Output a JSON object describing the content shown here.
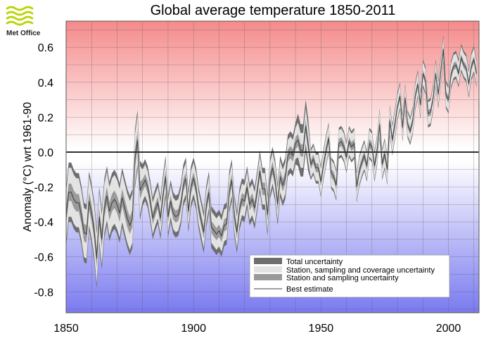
{
  "logo": {
    "text": "Met Office"
  },
  "colors": {
    "warm_band": "#f58a8a",
    "cool_band": "#7a7af0",
    "total_uncertainty": "#6e6e6e",
    "coverage_uncertainty": "#e3e3e3",
    "sampling_uncertainty": "#9a9a9a",
    "best_estimate": "#444444",
    "zero_line": "#000000"
  },
  "chart_data": {
    "type": "area",
    "title": "Global average temperature 1850-2011",
    "xlabel": "",
    "ylabel": "Anomaly (°C) wrt 1961-90",
    "xlim": [
      1850,
      2012
    ],
    "ylim": [
      -0.92,
      0.75
    ],
    "xticks": [
      1850,
      1900,
      1950,
      2000
    ],
    "yticks": [
      -0.8,
      -0.6,
      -0.4,
      -0.2,
      0.0,
      0.2,
      0.4,
      0.6
    ],
    "ytick_labels": [
      "-0.8",
      "-0.6",
      "-0.4",
      "-0.2",
      "0.0",
      "0.2",
      "0.4",
      "0.6"
    ],
    "grid": true,
    "legend_position": "lower-right",
    "legend": [
      {
        "key": "total",
        "label": "Total uncertainty"
      },
      {
        "key": "coverage",
        "label": "Station, sampling and coverage uncertainty"
      },
      {
        "key": "sampling",
        "label": "Station and sampling uncertainty"
      },
      {
        "key": "best",
        "label": "Best estimate"
      }
    ],
    "best_estimate": [
      [
        1850,
        -0.37
      ],
      [
        1851,
        -0.23
      ],
      [
        1852,
        -0.23
      ],
      [
        1853,
        -0.27
      ],
      [
        1854,
        -0.29
      ],
      [
        1855,
        -0.29
      ],
      [
        1856,
        -0.36
      ],
      [
        1857,
        -0.46
      ],
      [
        1858,
        -0.47
      ],
      [
        1859,
        -0.28
      ],
      [
        1860,
        -0.35
      ],
      [
        1861,
        -0.45
      ],
      [
        1862,
        -0.61
      ],
      [
        1863,
        -0.37
      ],
      [
        1864,
        -0.5
      ],
      [
        1865,
        -0.32
      ],
      [
        1866,
        -0.25
      ],
      [
        1867,
        -0.34
      ],
      [
        1868,
        -0.29
      ],
      [
        1869,
        -0.27
      ],
      [
        1870,
        -0.3
      ],
      [
        1871,
        -0.35
      ],
      [
        1872,
        -0.26
      ],
      [
        1873,
        -0.32
      ],
      [
        1874,
        -0.38
      ],
      [
        1875,
        -0.42
      ],
      [
        1876,
        -0.38
      ],
      [
        1877,
        -0.04
      ],
      [
        1878,
        0.07
      ],
      [
        1879,
        -0.22
      ],
      [
        1880,
        -0.19
      ],
      [
        1881,
        -0.16
      ],
      [
        1882,
        -0.2
      ],
      [
        1883,
        -0.28
      ],
      [
        1884,
        -0.38
      ],
      [
        1885,
        -0.33
      ],
      [
        1886,
        -0.29
      ],
      [
        1887,
        -0.38
      ],
      [
        1888,
        -0.25
      ],
      [
        1889,
        -0.14
      ],
      [
        1890,
        -0.37
      ],
      [
        1891,
        -0.28
      ],
      [
        1892,
        -0.35
      ],
      [
        1893,
        -0.37
      ],
      [
        1894,
        -0.36
      ],
      [
        1895,
        -0.3
      ],
      [
        1896,
        -0.19
      ],
      [
        1897,
        -0.15
      ],
      [
        1898,
        -0.34
      ],
      [
        1899,
        -0.2
      ],
      [
        1900,
        -0.15
      ],
      [
        1901,
        -0.21
      ],
      [
        1902,
        -0.32
      ],
      [
        1903,
        -0.39
      ],
      [
        1904,
        -0.46
      ],
      [
        1905,
        -0.31
      ],
      [
        1906,
        -0.23
      ],
      [
        1907,
        -0.43
      ],
      [
        1908,
        -0.45
      ],
      [
        1909,
        -0.47
      ],
      [
        1910,
        -0.45
      ],
      [
        1911,
        -0.48
      ],
      [
        1912,
        -0.42
      ],
      [
        1913,
        -0.41
      ],
      [
        1914,
        -0.23
      ],
      [
        1915,
        -0.16
      ],
      [
        1916,
        -0.36
      ],
      [
        1917,
        -0.46
      ],
      [
        1918,
        -0.33
      ],
      [
        1919,
        -0.27
      ],
      [
        1920,
        -0.28
      ],
      [
        1921,
        -0.2
      ],
      [
        1922,
        -0.3
      ],
      [
        1923,
        -0.27
      ],
      [
        1924,
        -0.32
      ],
      [
        1925,
        -0.22
      ],
      [
        1926,
        -0.11
      ],
      [
        1927,
        -0.21
      ],
      [
        1928,
        -0.21
      ],
      [
        1929,
        -0.36
      ],
      [
        1930,
        -0.15
      ],
      [
        1931,
        -0.09
      ],
      [
        1932,
        -0.16
      ],
      [
        1933,
        -0.3
      ],
      [
        1934,
        -0.14
      ],
      [
        1935,
        -0.19
      ],
      [
        1936,
        -0.15
      ],
      [
        1937,
        -0.02
      ],
      [
        1938,
        0.0
      ],
      [
        1939,
        -0.02
      ],
      [
        1940,
        0.05
      ],
      [
        1941,
        0.07
      ],
      [
        1942,
        0.01
      ],
      [
        1943,
        0.01
      ],
      [
        1944,
        0.15
      ],
      [
        1945,
        0.04
      ],
      [
        1946,
        -0.07
      ],
      [
        1947,
        -0.04
      ],
      [
        1948,
        -0.09
      ],
      [
        1949,
        -0.09
      ],
      [
        1950,
        -0.17
      ],
      [
        1951,
        -0.07
      ],
      [
        1952,
        0.01
      ],
      [
        1953,
        0.08
      ],
      [
        1954,
        -0.12
      ],
      [
        1955,
        -0.14
      ],
      [
        1956,
        -0.19
      ],
      [
        1957,
        0.05
      ],
      [
        1958,
        0.06
      ],
      [
        1959,
        0.03
      ],
      [
        1960,
        -0.03
      ],
      [
        1961,
        0.06
      ],
      [
        1962,
        0.03
      ],
      [
        1963,
        0.05
      ],
      [
        1964,
        -0.2
      ],
      [
        1965,
        -0.11
      ],
      [
        1966,
        -0.06
      ],
      [
        1967,
        -0.02
      ],
      [
        1968,
        -0.08
      ],
      [
        1969,
        0.05
      ],
      [
        1970,
        0.03
      ],
      [
        1971,
        -0.08
      ],
      [
        1972,
        0.01
      ],
      [
        1973,
        0.16
      ],
      [
        1974,
        -0.07
      ],
      [
        1975,
        -0.01
      ],
      [
        1976,
        -0.1
      ],
      [
        1977,
        0.18
      ],
      [
        1978,
        0.07
      ],
      [
        1979,
        0.16
      ],
      [
        1980,
        0.26
      ],
      [
        1981,
        0.32
      ],
      [
        1982,
        0.14
      ],
      [
        1983,
        0.31
      ],
      [
        1984,
        0.16
      ],
      [
        1985,
        0.12
      ],
      [
        1986,
        0.18
      ],
      [
        1987,
        0.32
      ],
      [
        1988,
        0.39
      ],
      [
        1989,
        0.27
      ],
      [
        1990,
        0.45
      ],
      [
        1991,
        0.41
      ],
      [
        1992,
        0.22
      ],
      [
        1993,
        0.23
      ],
      [
        1994,
        0.31
      ],
      [
        1995,
        0.45
      ],
      [
        1996,
        0.33
      ],
      [
        1997,
        0.46
      ],
      [
        1998,
        0.59
      ],
      [
        1999,
        0.33
      ],
      [
        2000,
        0.3
      ],
      [
        2001,
        0.44
      ],
      [
        2002,
        0.49
      ],
      [
        2003,
        0.5
      ],
      [
        2004,
        0.45
      ],
      [
        2005,
        0.54
      ],
      [
        2006,
        0.5
      ],
      [
        2007,
        0.48
      ],
      [
        2008,
        0.39
      ],
      [
        2009,
        0.49
      ],
      [
        2010,
        0.53
      ],
      [
        2011,
        0.45
      ]
    ],
    "band_halfwidths": [
      {
        "from": 1850,
        "to": 1880,
        "sampling": 0.05,
        "coverage": 0.14,
        "total": 0.17
      },
      {
        "from": 1880,
        "to": 1941,
        "sampling": 0.035,
        "coverage": 0.09,
        "total": 0.12
      },
      {
        "from": 1941,
        "to": 1946,
        "sampling": 0.035,
        "coverage": 0.1,
        "total": 0.15
      },
      {
        "from": 1946,
        "to": 1980,
        "sampling": 0.025,
        "coverage": 0.075,
        "total": 0.09
      },
      {
        "from": 1980,
        "to": 2012,
        "sampling": 0.02,
        "coverage": 0.065,
        "total": 0.08
      }
    ]
  }
}
